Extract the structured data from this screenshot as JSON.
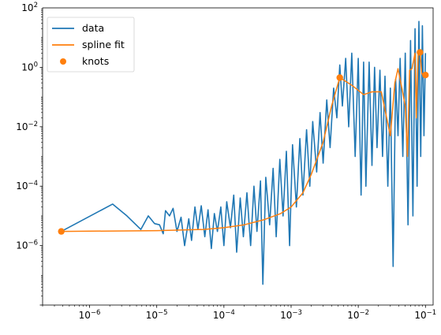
{
  "chart_data": {
    "type": "line",
    "xscale": "log",
    "yscale": "log",
    "xlim": [
      2e-07,
      0.13
    ],
    "ylim": [
      1e-08,
      100
    ],
    "x_ticks": [
      {
        "value": 1e-06,
        "base": "10",
        "exp": "−6"
      },
      {
        "value": 1e-05,
        "base": "10",
        "exp": "−5"
      },
      {
        "value": 0.0001,
        "base": "10",
        "exp": "−4"
      },
      {
        "value": 0.001,
        "base": "10",
        "exp": "−3"
      },
      {
        "value": 0.01,
        "base": "10",
        "exp": "−2"
      },
      {
        "value": 0.1,
        "base": "10",
        "exp": "−1"
      }
    ],
    "y_ticks": [
      {
        "value": 1e-06,
        "base": "10",
        "exp": "−6"
      },
      {
        "value": 0.0001,
        "base": "10",
        "exp": "−4"
      },
      {
        "value": 0.01,
        "base": "10",
        "exp": "−2"
      },
      {
        "value": 1,
        "base": "10",
        "exp": "0"
      },
      {
        "value": 100,
        "base": "10",
        "exp": "2"
      }
    ],
    "legend": {
      "placement": "top-left",
      "entries": [
        "data",
        "spline fit",
        "knots"
      ]
    },
    "colors": {
      "data": "#1f77b4",
      "spline": "#ff7f0e",
      "knots": "#ff7f0e"
    },
    "series": [
      {
        "name": "data",
        "kind": "line",
        "points": [
          [
            3.8e-07,
            3e-06
          ],
          [
            2.2e-06,
            2.5e-05
          ],
          [
            3.6e-06,
            1e-05
          ],
          [
            5.8e-06,
            3.5e-06
          ],
          [
            7.5e-06,
            1e-05
          ],
          [
            9.3e-06,
            5.5e-06
          ],
          [
            1.1e-05,
            5e-06
          ],
          [
            1.25e-05,
            2.5e-06
          ],
          [
            1.35e-05,
            1.5e-05
          ],
          [
            1.55e-05,
            1e-05
          ],
          [
            1.75e-05,
            1.8e-05
          ],
          [
            2e-05,
            3e-06
          ],
          [
            2.3e-05,
            9e-06
          ],
          [
            2.6e-05,
            1e-06
          ],
          [
            3e-05,
            8e-06
          ],
          [
            3.3e-05,
            1.5e-06
          ],
          [
            3.7e-05,
            2e-05
          ],
          [
            4.1e-05,
            3.5e-06
          ],
          [
            4.6e-05,
            2.2e-05
          ],
          [
            5.2e-05,
            2e-06
          ],
          [
            5.8e-05,
            1.6e-05
          ],
          [
            6.5e-05,
            8e-07
          ],
          [
            7.2e-05,
            1.2e-05
          ],
          [
            8e-05,
            3e-06
          ],
          [
            9e-05,
            2e-05
          ],
          [
            0.0001,
            1e-06
          ],
          [
            0.00011,
            3e-05
          ],
          [
            0.000125,
            4e-06
          ],
          [
            0.00014,
            5e-05
          ],
          [
            0.000155,
            6e-07
          ],
          [
            0.000175,
            4e-05
          ],
          [
            0.000195,
            2e-06
          ],
          [
            0.00022,
            6e-05
          ],
          [
            0.00025,
            1e-06
          ],
          [
            0.00028,
            0.0001
          ],
          [
            0.00031,
            3e-06
          ],
          [
            0.00035,
            0.00015
          ],
          [
            0.00038,
            5e-08
          ],
          [
            0.00042,
            0.0002
          ],
          [
            0.00048,
            5e-06
          ],
          [
            0.00054,
            0.0004
          ],
          [
            0.0006,
            2e-06
          ],
          [
            0.00068,
            0.0008
          ],
          [
            0.00076,
            1e-05
          ],
          [
            0.00085,
            0.0015
          ],
          [
            0.00095,
            1e-06
          ],
          [
            0.00105,
            0.0025
          ],
          [
            0.0012,
            2e-05
          ],
          [
            0.00135,
            0.004
          ],
          [
            0.0015,
            5e-05
          ],
          [
            0.0017,
            0.008
          ],
          [
            0.0019,
            0.0001
          ],
          [
            0.0021,
            0.015
          ],
          [
            0.0024,
            0.0003
          ],
          [
            0.0027,
            0.03
          ],
          [
            0.003,
            0.0006
          ],
          [
            0.0034,
            0.08
          ],
          [
            0.0038,
            0.002
          ],
          [
            0.0043,
            0.2
          ],
          [
            0.0048,
            0.02
          ],
          [
            0.0053,
            1.2
          ],
          [
            0.0058,
            0.05
          ],
          [
            0.0065,
            2.0
          ],
          [
            0.0072,
            0.01
          ],
          [
            0.008,
            3.0
          ],
          [
            0.009,
            0.001
          ],
          [
            0.01,
            2.0
          ],
          [
            0.011,
            5e-05
          ],
          [
            0.012,
            1.5
          ],
          [
            0.013,
            0.0001
          ],
          [
            0.0145,
            1.5
          ],
          [
            0.016,
            0.0005
          ],
          [
            0.0175,
            1.0
          ],
          [
            0.019,
            0.002
          ],
          [
            0.021,
            0.8
          ],
          [
            0.023,
            0.001
          ],
          [
            0.025,
            0.5
          ],
          [
            0.0275,
            0.0001
          ],
          [
            0.03,
            0.2
          ],
          [
            0.033,
            2e-07
          ],
          [
            0.036,
            0.4
          ],
          [
            0.039,
            0.005
          ],
          [
            0.042,
            2.0
          ],
          [
            0.046,
            0.001
          ],
          [
            0.05,
            3.0
          ],
          [
            0.055,
            5e-06
          ],
          [
            0.06,
            8.0
          ],
          [
            0.065,
            1e-05
          ],
          [
            0.07,
            20
          ],
          [
            0.075,
            0.0001
          ],
          [
            0.08,
            35
          ],
          [
            0.085,
            0.001
          ],
          [
            0.09,
            25
          ],
          [
            0.095,
            0.005
          ],
          [
            0.1,
            3.0
          ]
        ]
      },
      {
        "name": "spline fit",
        "kind": "line",
        "points": [
          [
            3.8e-07,
            3e-06
          ],
          [
            1e-06,
            3.05e-06
          ],
          [
            1e-05,
            3.2e-06
          ],
          [
            5e-05,
            3.5e-06
          ],
          [
            0.0001,
            4e-06
          ],
          [
            0.0002,
            5e-06
          ],
          [
            0.0004,
            7.5e-06
          ],
          [
            0.0007,
            1.2e-05
          ],
          [
            0.001,
            2e-05
          ],
          [
            0.0015,
            6e-05
          ],
          [
            0.002,
            0.00025
          ],
          [
            0.003,
            0.003
          ],
          [
            0.004,
            0.05
          ],
          [
            0.0053,
            0.45
          ],
          [
            0.008,
            0.25
          ],
          [
            0.012,
            0.12
          ],
          [
            0.016,
            0.15
          ],
          [
            0.022,
            0.15
          ],
          [
            0.03,
            0.005
          ],
          [
            0.035,
            0.3
          ],
          [
            0.039,
            0.9
          ],
          [
            0.043,
            0.3
          ],
          [
            0.05,
            0.05
          ],
          [
            0.054,
            0.001
          ],
          [
            0.058,
            0.8
          ],
          [
            0.063,
            0.9
          ],
          [
            0.07,
            3.0
          ],
          [
            0.073,
            0.02
          ],
          [
            0.078,
            3.0
          ],
          [
            0.083,
            3.2
          ],
          [
            0.088,
            0.6
          ],
          [
            0.1,
            0.55
          ]
        ]
      },
      {
        "name": "knots",
        "kind": "scatter",
        "points": [
          [
            3.8e-07,
            3e-06
          ],
          [
            0.0053,
            0.45
          ],
          [
            0.083,
            3.2
          ],
          [
            0.1,
            0.55
          ]
        ]
      }
    ]
  }
}
